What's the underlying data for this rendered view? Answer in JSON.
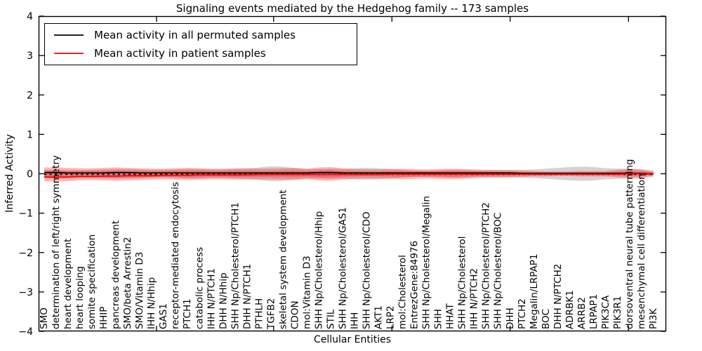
{
  "legend": {
    "items": [
      {
        "label": "Mean activity in all permuted samples",
        "color": "#000000"
      },
      {
        "label": "Mean activity in patient samples",
        "color": "#ff0000"
      }
    ]
  },
  "chart_data": {
    "type": "line",
    "title": "Signaling events mediated by the Hedgehog family -- 173 samples",
    "xlabel": "Cellular Entities",
    "ylabel": "Inferred Activity",
    "ylim": [
      -4,
      4
    ],
    "ytick_values": [
      4,
      3,
      2,
      1,
      0,
      -1,
      -2,
      -3,
      -4
    ],
    "ytick_labels": [
      "4",
      "3",
      "2",
      "1",
      "0",
      "−1",
      "−2",
      "−3",
      "−4"
    ],
    "x_major_tick_positions": [
      9.4,
      19.2,
      29.1,
      39.0,
      48.9
    ],
    "grid": false,
    "legend_position": "upper left",
    "zero_line": {
      "y": -0.015,
      "style": "dashed",
      "color": "#000000"
    },
    "categories": [
      "SMO",
      "determination of left/right symmetry",
      "heart development",
      "heart looping",
      "somite specification",
      "HHIP",
      "pancreas development",
      "SMO/beta Arrestin2",
      "SMO/Vitamin D3",
      "IHH N/Hhip",
      "GAS1",
      "receptor-mediated endocytosis",
      "PTCH1",
      "catabolic process",
      "IHH N/PTCH1",
      "DHH N/Hhip",
      "SHH Np/Cholesterol/PTCH1",
      "DHH N/PTCH1",
      "PTHLH",
      "TGFB2",
      "skeletal system development",
      "CDON",
      "mol:Vitamin D3",
      "SHH Np/Cholesterol/Hhip",
      "STIL",
      "SHH Np/Cholesterol/GAS1",
      "IHH",
      "SHH Np/Cholesterol/CDO",
      "AKT1",
      "LRP2",
      "mol:Cholesterol",
      "EntrezGene:84976",
      "SHH Np/Cholesterol/Megalin",
      "SHH",
      "HHAT",
      "SHH Np/Cholesterol",
      "IHH N/PTCH2",
      "SHH Np/Cholesterol/PTCH2",
      "SHH Np/Cholesterol/BOC",
      "DHH",
      "PTCH2",
      "Megalin/LRPAP1",
      "BOC",
      "DHH N/PTCH2",
      "ADRBK1",
      "ARRB2",
      "LRPAP1",
      "PIK3CA",
      "PIK3R1",
      "dorsoventral neural tube patterning",
      "mesenchymal cell differentiation",
      "PI3K"
    ],
    "series": [
      {
        "name": "Mean activity in all permuted samples",
        "color": "#000000",
        "values": [
          0.03,
          0.03,
          0.02,
          0.02,
          0.02,
          0.02,
          0.03,
          0.03,
          0.02,
          0.02,
          0.02,
          0.02,
          0.02,
          0.02,
          0.02,
          0.02,
          0.02,
          0.02,
          0.02,
          0.02,
          0.02,
          0.02,
          0.02,
          0.03,
          0.03,
          0.02,
          0.02,
          0.02,
          0.02,
          0.02,
          0.02,
          0.02,
          0.02,
          0.02,
          0.02,
          0.02,
          0.02,
          0.02,
          0.02,
          0.02,
          0.01,
          0.01,
          0.01,
          0.01,
          0.01,
          0.01,
          0.01,
          0.01,
          0.01,
          0.01,
          0.01,
          0.0
        ]
      },
      {
        "name": "Mean activity in patient samples",
        "color": "#ff0000",
        "values": [
          -0.08,
          -0.09,
          -0.08,
          -0.07,
          -0.07,
          -0.06,
          -0.06,
          -0.05,
          -0.05,
          -0.05,
          -0.04,
          -0.04,
          -0.04,
          -0.03,
          -0.03,
          -0.03,
          -0.03,
          -0.03,
          -0.02,
          -0.02,
          -0.02,
          -0.02,
          -0.02,
          -0.02,
          -0.02,
          -0.02,
          -0.02,
          -0.02,
          -0.02,
          -0.01,
          -0.01,
          -0.01,
          -0.01,
          -0.01,
          -0.01,
          -0.01,
          -0.01,
          -0.01,
          -0.01,
          -0.01,
          -0.01,
          -0.01,
          -0.01,
          -0.01,
          -0.01,
          -0.01,
          -0.01,
          -0.01,
          -0.01,
          0.0,
          0.0,
          0.0
        ]
      }
    ],
    "bands": [
      {
        "name": "permuted-range",
        "color": "rgba(130,130,130,0.35)",
        "top": [
          0.1,
          0.1,
          0.09,
          0.09,
          0.1,
          0.11,
          0.12,
          0.12,
          0.11,
          0.1,
          0.1,
          0.11,
          0.12,
          0.12,
          0.11,
          0.11,
          0.12,
          0.13,
          0.16,
          0.19,
          0.18,
          0.14,
          0.12,
          0.12,
          0.13,
          0.12,
          0.14,
          0.15,
          0.14,
          0.12,
          0.1,
          0.08,
          0.08,
          0.09,
          0.1,
          0.1,
          0.09,
          0.09,
          0.1,
          0.1,
          0.1,
          0.11,
          0.13,
          0.15,
          0.17,
          0.18,
          0.17,
          0.14,
          0.13,
          0.13,
          0.12,
          0.08
        ],
        "bottom": [
          -0.1,
          -0.1,
          -0.09,
          -0.09,
          -0.1,
          -0.11,
          -0.12,
          -0.12,
          -0.11,
          -0.1,
          -0.1,
          -0.11,
          -0.12,
          -0.12,
          -0.11,
          -0.11,
          -0.12,
          -0.13,
          -0.16,
          -0.19,
          -0.18,
          -0.14,
          -0.12,
          -0.12,
          -0.13,
          -0.12,
          -0.14,
          -0.15,
          -0.14,
          -0.12,
          -0.1,
          -0.08,
          -0.08,
          -0.09,
          -0.1,
          -0.1,
          -0.09,
          -0.09,
          -0.1,
          -0.1,
          -0.1,
          -0.11,
          -0.13,
          -0.15,
          -0.17,
          -0.18,
          -0.17,
          -0.14,
          -0.13,
          -0.13,
          -0.12,
          -0.08
        ]
      },
      {
        "name": "patient-range",
        "color": "rgba(255,0,0,0.28)",
        "top": [
          0.16,
          0.16,
          0.15,
          0.14,
          0.14,
          0.15,
          0.16,
          0.15,
          0.14,
          0.13,
          0.13,
          0.14,
          0.15,
          0.14,
          0.13,
          0.13,
          0.14,
          0.14,
          0.13,
          0.13,
          0.14,
          0.15,
          0.13,
          0.16,
          0.17,
          0.14,
          0.12,
          0.11,
          0.11,
          0.12,
          0.13,
          0.12,
          0.11,
          0.12,
          0.13,
          0.12,
          0.11,
          0.1,
          0.09,
          0.09,
          0.08,
          0.07,
          0.06,
          0.06,
          0.06,
          0.07,
          0.07,
          0.07,
          0.1,
          0.12,
          0.1,
          0.05
        ],
        "bottom": [
          -0.19,
          -0.2,
          -0.19,
          -0.17,
          -0.16,
          -0.17,
          -0.18,
          -0.17,
          -0.16,
          -0.15,
          -0.14,
          -0.15,
          -0.16,
          -0.15,
          -0.14,
          -0.14,
          -0.15,
          -0.15,
          -0.14,
          -0.14,
          -0.15,
          -0.16,
          -0.14,
          -0.17,
          -0.18,
          -0.15,
          -0.13,
          -0.12,
          -0.12,
          -0.13,
          -0.14,
          -0.13,
          -0.12,
          -0.13,
          -0.14,
          -0.13,
          -0.11,
          -0.1,
          -0.09,
          -0.09,
          -0.08,
          -0.07,
          -0.07,
          -0.06,
          -0.06,
          -0.07,
          -0.07,
          -0.07,
          -0.09,
          -0.1,
          -0.09,
          -0.05
        ]
      }
    ]
  }
}
